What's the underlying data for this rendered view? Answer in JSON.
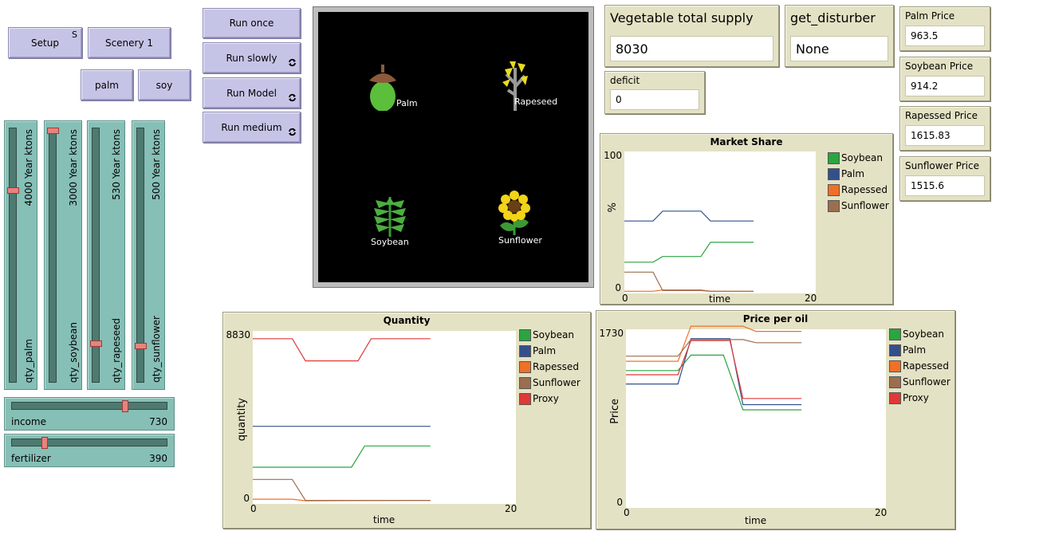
{
  "buttons": {
    "setup": {
      "label": "Setup",
      "key": "S"
    },
    "scenery": {
      "label": "Scenery 1"
    },
    "palm": {
      "label": "palm"
    },
    "soy": {
      "label": "soy"
    },
    "run_once": {
      "label": "Run once"
    },
    "run_slowly": {
      "label": "Run slowly"
    },
    "run_model": {
      "label": "Run Model"
    },
    "run_medium": {
      "label": "Run medium"
    }
  },
  "vsliders": [
    {
      "name": "qty_palm",
      "value_label": "4000 Year ktons",
      "fraction": 0.24
    },
    {
      "name": "qty_soybean",
      "value_label": "3000 Year ktons",
      "fraction": 0.0
    },
    {
      "name": "qty_rapeseed",
      "value_label": "530 Year ktons",
      "fraction": 0.85
    },
    {
      "name": "qty_sunflower",
      "value_label": "500 Year ktons",
      "fraction": 0.86
    }
  ],
  "hsliders": [
    {
      "name": "income",
      "value": "730",
      "fraction": 0.73
    },
    {
      "name": "fertilizer",
      "value": "390",
      "fraction": 0.2
    }
  ],
  "monitors": {
    "vegetable_supply": {
      "title": "Vegetable total supply",
      "value": "8030"
    },
    "disturber": {
      "title": "get_disturber",
      "value": "None"
    },
    "deficit": {
      "title": "deficit",
      "value": "0"
    },
    "palm_price": {
      "title": "Palm Price",
      "value": "963.5"
    },
    "soybean_price": {
      "title": "Soybean Price",
      "value": "914.2"
    },
    "rapessed_price": {
      "title": "Rapessed Price",
      "value": "1615.83"
    },
    "sunflower_price": {
      "title": "Sunflower Price",
      "value": "1515.6"
    }
  },
  "world": {
    "agents": [
      {
        "label": "Palm",
        "icon": "acorn-icon"
      },
      {
        "label": "Rapeseed",
        "icon": "plant-icon"
      },
      {
        "label": "Soybean",
        "icon": "leaf-icon"
      },
      {
        "label": "Sunflower",
        "icon": "flower-icon"
      }
    ]
  },
  "colors": {
    "soybean": "#2aa540",
    "palm": "#34508c",
    "rapessed": "#f07028",
    "sunflower": "#9b6e50",
    "proxy": "#e03838"
  },
  "chart_data": [
    {
      "id": "market_share",
      "type": "line",
      "title": "Market Share",
      "xlabel": "time",
      "ylabel": "%",
      "xlim": [
        0,
        20
      ],
      "ylim": [
        0,
        100
      ],
      "x_ticks": [
        "0",
        "20"
      ],
      "y_ticks": [
        "0",
        "100"
      ],
      "legend": [
        "Soybean",
        "Palm",
        "Rapessed",
        "Sunflower"
      ],
      "series": [
        {
          "name": "Soybean",
          "color": "#2aa540",
          "points": [
            [
              0,
              22
            ],
            [
              3,
              22
            ],
            [
              4,
              26
            ],
            [
              8,
              26
            ],
            [
              9,
              36
            ],
            [
              13.5,
              36
            ]
          ]
        },
        {
          "name": "Palm",
          "color": "#34508c",
          "points": [
            [
              0,
              51
            ],
            [
              3,
              51
            ],
            [
              4,
              58
            ],
            [
              8,
              58
            ],
            [
              9,
              51
            ],
            [
              13.5,
              51
            ]
          ]
        },
        {
          "name": "Rapessed",
          "color": "#f07028",
          "points": [
            [
              0,
              1.5
            ],
            [
              3,
              1.5
            ],
            [
              4,
              2.5
            ],
            [
              8,
              2.5
            ],
            [
              9,
              1.5
            ],
            [
              13.5,
              1.5
            ]
          ]
        },
        {
          "name": "Sunflower",
          "color": "#9b6e50",
          "points": [
            [
              0,
              15
            ],
            [
              3,
              15
            ],
            [
              4,
              2
            ],
            [
              8,
              2
            ],
            [
              9,
              1.5
            ],
            [
              13.5,
              1.5
            ]
          ]
        }
      ]
    },
    {
      "id": "quantity",
      "type": "line",
      "title": "Quantity",
      "xlabel": "time",
      "ylabel": "quantity",
      "xlim": [
        0,
        20
      ],
      "ylim": [
        0,
        8830
      ],
      "x_ticks": [
        "0",
        "20"
      ],
      "y_ticks": [
        "0",
        "8830"
      ],
      "legend": [
        "Soybean",
        "Palm",
        "Rapessed",
        "Sunflower",
        "Proxy"
      ],
      "series": [
        {
          "name": "Soybean",
          "color": "#2aa540",
          "points": [
            [
              0,
              1870
            ],
            [
              3,
              1870
            ],
            [
              4,
              1870
            ],
            [
              7.5,
              1870
            ],
            [
              8.5,
              2960
            ],
            [
              13.5,
              2960
            ]
          ]
        },
        {
          "name": "Palm",
          "color": "#34508c",
          "points": [
            [
              0,
              3960
            ],
            [
              13.5,
              3960
            ]
          ]
        },
        {
          "name": "Rapessed",
          "color": "#f07028",
          "points": [
            [
              0,
              240
            ],
            [
              3,
              240
            ],
            [
              4,
              160
            ],
            [
              13.5,
              180
            ]
          ]
        },
        {
          "name": "Sunflower",
          "color": "#9b6e50",
          "points": [
            [
              0,
              1250
            ],
            [
              3,
              1250
            ],
            [
              4,
              180
            ],
            [
              13.5,
              180
            ]
          ]
        },
        {
          "name": "Proxy",
          "color": "#e03838",
          "points": [
            [
              0,
              8430
            ],
            [
              3,
              8430
            ],
            [
              4,
              7300
            ],
            [
              8,
              7300
            ],
            [
              9,
              8430
            ],
            [
              13.5,
              8430
            ]
          ]
        }
      ]
    },
    {
      "id": "price_per_oil",
      "type": "line",
      "title": "Price per oil",
      "xlabel": "time",
      "ylabel": "Price",
      "xlim": [
        0,
        20
      ],
      "ylim": [
        0,
        1730
      ],
      "x_ticks": [
        "0",
        "20"
      ],
      "y_ticks": [
        "0",
        "1730"
      ],
      "legend": [
        "Soybean",
        "Palm",
        "Rapessed",
        "Sunflower",
        "Proxy"
      ],
      "series": [
        {
          "name": "Soybean",
          "color": "#2aa540",
          "points": [
            [
              0,
              1330
            ],
            [
              4,
              1330
            ],
            [
              5,
              1480
            ],
            [
              7.5,
              1480
            ],
            [
              9,
              950
            ],
            [
              13.5,
              950
            ]
          ]
        },
        {
          "name": "Palm",
          "color": "#34508c",
          "points": [
            [
              0,
              1200
            ],
            [
              4,
              1200
            ],
            [
              5,
              1640
            ],
            [
              8,
              1640
            ],
            [
              9,
              1000
            ],
            [
              13.5,
              1000
            ]
          ]
        },
        {
          "name": "Rapessed",
          "color": "#f07028",
          "points": [
            [
              0,
              1420
            ],
            [
              4,
              1420
            ],
            [
              5,
              1760
            ],
            [
              9,
              1760
            ],
            [
              10,
              1710
            ],
            [
              13.5,
              1710
            ]
          ]
        },
        {
          "name": "Sunflower",
          "color": "#9b6e50",
          "points": [
            [
              0,
              1470
            ],
            [
              4,
              1470
            ],
            [
              5,
              1630
            ],
            [
              9,
              1630
            ],
            [
              10,
              1600
            ],
            [
              13.5,
              1600
            ]
          ]
        },
        {
          "name": "Proxy",
          "color": "#e03838",
          "points": [
            [
              0,
              1290
            ],
            [
              4,
              1290
            ],
            [
              5,
              1620
            ],
            [
              8,
              1620
            ],
            [
              9,
              1060
            ],
            [
              13.5,
              1060
            ]
          ]
        }
      ]
    }
  ]
}
